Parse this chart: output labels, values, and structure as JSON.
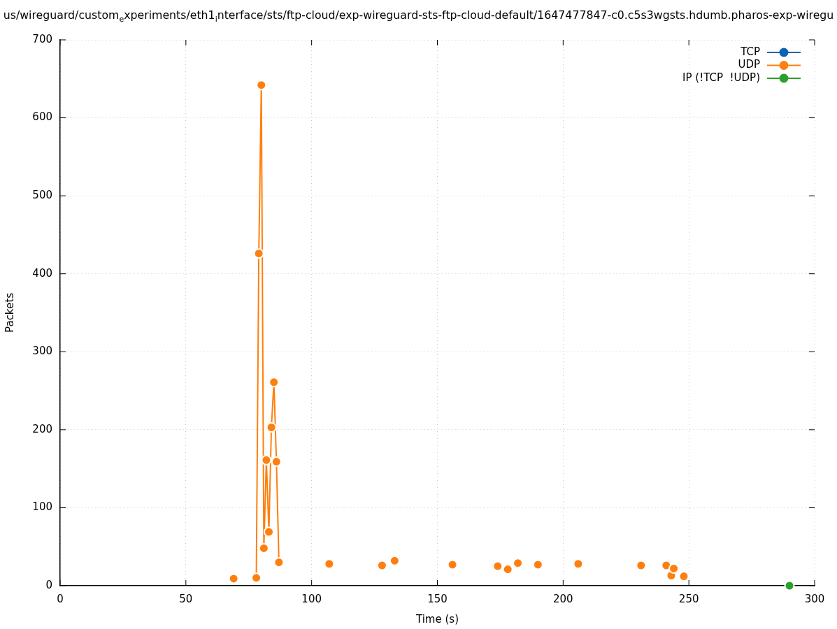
{
  "chart_data": {
    "type": "line",
    "title": "us/wireguard/custom$_{e}$xperiments/eth1$_{i}$nterface/sts/ftp-cloud/exp-wireguard-sts-ftp-cloud-default/1647477847-c0.c5s3wgsts.hdumb.pharos-exp-wiregu",
    "xlabel": "Time (s)",
    "ylabel": "Packets",
    "xlim": [
      0,
      300
    ],
    "xticks": [
      0,
      50,
      100,
      150,
      200,
      250,
      300
    ],
    "ylim": [
      0,
      700
    ],
    "yticks": [
      0,
      100,
      200,
      300,
      400,
      500,
      600,
      700
    ],
    "grid": true,
    "legend": "top right",
    "marker": "circle",
    "line_style": "solid",
    "series": [
      {
        "name": "TCP",
        "color": "#0a64b4"
      },
      {
        "name": "UDP",
        "color": "#ff7f0e",
        "x": [
          69,
          73,
          78,
          79,
          80,
          81,
          82,
          83,
          84,
          85,
          86,
          87,
          97,
          107,
          118,
          128,
          130,
          133,
          145,
          156,
          165,
          174,
          176,
          178,
          180,
          182,
          186,
          190,
          198,
          206,
          218,
          231,
          236,
          241,
          242,
          243,
          243.5,
          244,
          246,
          248
        ],
        "values": [
          9,
          null,
          10,
          426,
          642,
          48,
          161,
          69,
          203,
          261,
          159,
          30,
          null,
          28,
          null,
          26,
          null,
          32,
          null,
          27,
          null,
          25,
          null,
          21,
          null,
          29,
          null,
          27,
          null,
          28,
          null,
          26,
          null,
          26,
          null,
          13,
          null,
          22,
          null,
          12
        ]
      },
      {
        "name": "IP (!TCP  !UDP)",
        "color": "#2ca02c",
        "x": [
          290
        ],
        "values": [
          0
        ]
      }
    ]
  }
}
